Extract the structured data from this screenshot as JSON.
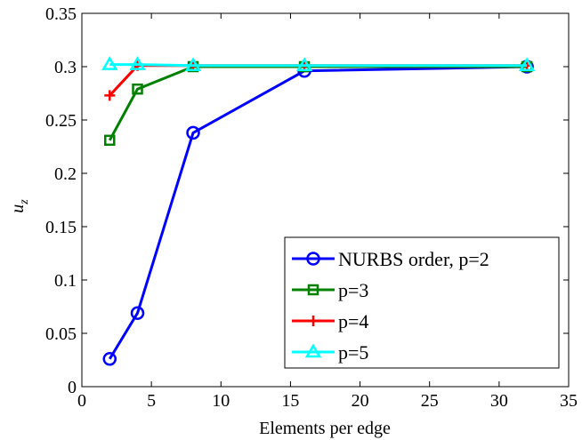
{
  "chart_data": {
    "type": "line",
    "title": "",
    "xlabel": "Elements per edge",
    "ylabel": "u",
    "ylabel_subscript": "z",
    "xlim": [
      0,
      35
    ],
    "ylim": [
      0,
      0.35
    ],
    "xticks": [
      0,
      5,
      10,
      15,
      20,
      25,
      30,
      35
    ],
    "yticks": [
      0,
      0.05,
      0.1,
      0.15,
      0.2,
      0.25,
      0.3,
      0.35
    ],
    "xtick_labels": [
      "0",
      "5",
      "10",
      "15",
      "20",
      "25",
      "30",
      "35"
    ],
    "ytick_labels": [
      "0",
      "0.05",
      "0.1",
      "0.15",
      "0.2",
      "0.25",
      "0.3",
      "0.35"
    ],
    "grid": false,
    "legend_position": "bottom-right",
    "series": [
      {
        "name": "NURBS order, p=2",
        "color": "#0000ff",
        "marker": "circle",
        "x": [
          2,
          4,
          8,
          16,
          32
        ],
        "y": [
          0.026,
          0.069,
          0.238,
          0.296,
          0.3
        ]
      },
      {
        "name": "p=3",
        "color": "#008000",
        "marker": "square",
        "x": [
          2,
          4,
          8,
          16,
          32
        ],
        "y": [
          0.231,
          0.279,
          0.3,
          0.3,
          0.3
        ]
      },
      {
        "name": "p=4",
        "color": "#ff0000",
        "marker": "plus",
        "x": [
          2,
          4,
          8,
          16,
          32
        ],
        "y": [
          0.273,
          0.301,
          0.301,
          0.301,
          0.301
        ]
      },
      {
        "name": "p=5",
        "color": "#00ffff",
        "marker": "triangle",
        "x": [
          2,
          4,
          8,
          16,
          32
        ],
        "y": [
          0.302,
          0.302,
          0.301,
          0.301,
          0.301
        ]
      }
    ]
  }
}
